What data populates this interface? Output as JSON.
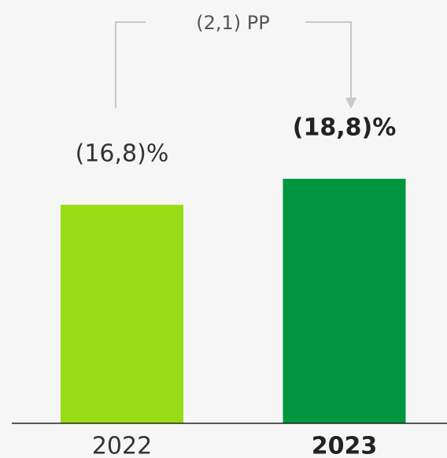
{
  "chart_data": {
    "type": "bar",
    "categories": [
      "2022",
      "2023"
    ],
    "values": [
      -16.8,
      -18.8
    ],
    "value_labels": [
      "(16,8)%",
      "(18,8)%"
    ],
    "colors": [
      "#97dc14",
      "#009640"
    ],
    "ylim": [
      0,
      -30
    ],
    "annotation": "(2,1) PP"
  }
}
